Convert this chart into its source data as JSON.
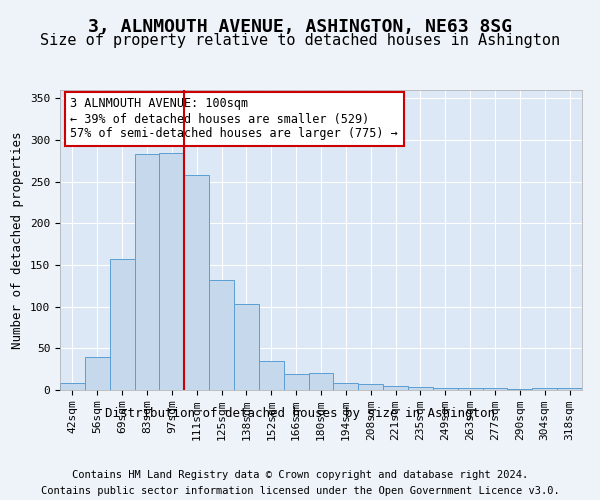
{
  "title": "3, ALNMOUTH AVENUE, ASHINGTON, NE63 8SG",
  "subtitle": "Size of property relative to detached houses in Ashington",
  "xlabel": "Distribution of detached houses by size in Ashington",
  "ylabel": "Number of detached properties",
  "categories": [
    "42sqm",
    "56sqm",
    "69sqm",
    "83sqm",
    "97sqm",
    "111sqm",
    "125sqm",
    "138sqm",
    "152sqm",
    "166sqm",
    "180sqm",
    "194sqm",
    "208sqm",
    "221sqm",
    "235sqm",
    "249sqm",
    "263sqm",
    "277sqm",
    "290sqm",
    "304sqm",
    "318sqm"
  ],
  "values": [
    9,
    40,
    157,
    283,
    284,
    258,
    132,
    103,
    35,
    19,
    20,
    9,
    7,
    5,
    4,
    3,
    2,
    2,
    1,
    2,
    2
  ],
  "bar_color": "#c5d8ec",
  "bar_edge_color": "#5a9fd4",
  "background_color": "#eef3f9",
  "plot_bg_color": "#dce8f5",
  "grid_color": "#ffffff",
  "vline_x": 4.5,
  "vline_color": "#cc0000",
  "annotation_text": "3 ALNMOUTH AVENUE: 100sqm\n← 39% of detached houses are smaller (529)\n57% of semi-detached houses are larger (775) →",
  "annotation_box_color": "#ffffff",
  "annotation_box_edge": "#cc0000",
  "footer1": "Contains HM Land Registry data © Crown copyright and database right 2024.",
  "footer2": "Contains public sector information licensed under the Open Government Licence v3.0.",
  "ylim": [
    0,
    360
  ],
  "yticks": [
    0,
    50,
    100,
    150,
    200,
    250,
    300,
    350
  ],
  "title_fontsize": 13,
  "subtitle_fontsize": 11,
  "axis_label_fontsize": 9,
  "tick_fontsize": 8,
  "annotation_fontsize": 8.5,
  "footer_fontsize": 7.5
}
